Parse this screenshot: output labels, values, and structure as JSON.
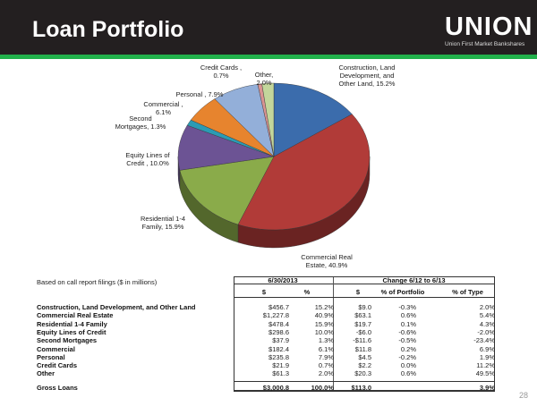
{
  "header": {
    "title": "Loan Portfolio",
    "logo_text": "UNION",
    "logo_tagline": "Union First Market Bankshares",
    "accent": "#21b14b"
  },
  "chart_data": {
    "type": "pie",
    "title": "",
    "slices": [
      {
        "label": "Construction, Land Development, and Other Land, 15.2%",
        "value": 15.2,
        "color": "#3b6cac"
      },
      {
        "label": "Commercial Real Estate, 40.9%",
        "value": 40.9,
        "color": "#b13b38"
      },
      {
        "label": "Residential 1-4 Family, 15.9%",
        "value": 15.9,
        "color": "#8aab4a"
      },
      {
        "label": "Equity Lines of Credit , 10.0%",
        "value": 10.0,
        "color": "#6c5394"
      },
      {
        "label": "Second Mortgages, 1.3%",
        "value": 1.3,
        "color": "#2b9bb4"
      },
      {
        "label": "Commercial , 6.1%",
        "value": 6.1,
        "color": "#e7842e"
      },
      {
        "label": "Personal , 7.9%",
        "value": 7.9,
        "color": "#93afd9"
      },
      {
        "label": "Credit Cards , 0.7%",
        "value": 0.7,
        "color": "#d99392"
      },
      {
        "label": "Other, 2.0%",
        "value": 2.0,
        "color": "#c3d69b"
      }
    ]
  },
  "table": {
    "note": "Based on call report filings ($ in millions)",
    "group1": "6/30/2013",
    "group2": "Change 6/12 to 6/13",
    "columns": [
      "$",
      "%",
      "$",
      "% of Portfolio",
      "% of Type"
    ],
    "rows": [
      {
        "name": "Construction, Land Development, and Other Land",
        "v": [
          "$456.7",
          "15.2%",
          "$9.0",
          "-0.3%",
          "2.0%"
        ]
      },
      {
        "name": "Commercial Real Estate",
        "v": [
          "$1,227.8",
          "40.9%",
          "$63.1",
          "0.6%",
          "5.4%"
        ]
      },
      {
        "name": "Residential 1-4 Family",
        "v": [
          "$478.4",
          "15.9%",
          "$19.7",
          "0.1%",
          "4.3%"
        ]
      },
      {
        "name": "Equity Lines of Credit",
        "v": [
          "$298.6",
          "10.0%",
          "-$6.0",
          "-0.6%",
          "-2.0%"
        ]
      },
      {
        "name": "Second Mortgages",
        "v": [
          "$37.9",
          "1.3%",
          "-$11.6",
          "-0.5%",
          "-23.4%"
        ]
      },
      {
        "name": "Commercial",
        "v": [
          "$182.4",
          "6.1%",
          "$11.8",
          "0.2%",
          "6.9%"
        ]
      },
      {
        "name": "Personal",
        "v": [
          "$235.8",
          "7.9%",
          "$4.5",
          "-0.2%",
          "1.9%"
        ]
      },
      {
        "name": "Credit Cards",
        "v": [
          "$21.9",
          "0.7%",
          "$2.2",
          "0.0%",
          "11.2%"
        ]
      },
      {
        "name": "Other",
        "v": [
          "$61.3",
          "2.0%",
          "$20.3",
          "0.6%",
          "49.5%"
        ]
      }
    ],
    "total": {
      "name": "Gross Loans",
      "v": [
        "$3,000.8",
        "100.0%",
        "$113.0",
        "",
        "3.9%"
      ]
    }
  },
  "page_number": "28"
}
